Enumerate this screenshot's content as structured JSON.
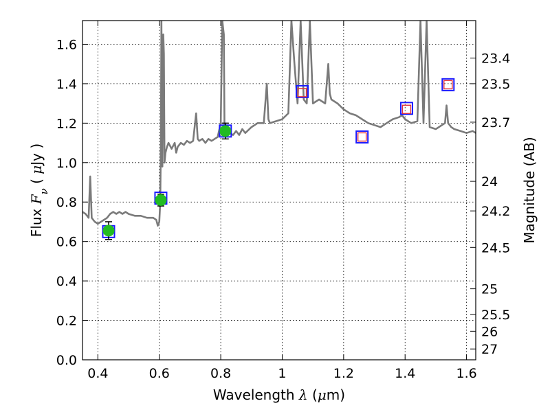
{
  "chart_data": {
    "type": "line",
    "xlabel": {
      "prefix": "Wavelength  ",
      "symbol": "λ",
      "suffix": " (",
      "unit": "μ",
      "tail": "m)"
    },
    "ylabel": {
      "prefix": "Flux  ",
      "symbol": "F",
      "subscript": "ν",
      "middle": "  ( ",
      "unit": "μ",
      "tail": "Jy )"
    },
    "y2label": "Magnitude (AB)",
    "xlim": [
      0.35,
      1.63
    ],
    "ylim": [
      0.0,
      1.72
    ],
    "xticks": [
      0.4,
      0.6,
      0.8,
      1.0,
      1.2,
      1.4,
      1.6
    ],
    "xtick_labels": [
      "0.4",
      "0.6",
      "0.8",
      "1",
      "1.2",
      "1.4",
      "1.6"
    ],
    "yticks": [
      0.0,
      0.2,
      0.4,
      0.6,
      0.8,
      1.0,
      1.2,
      1.4,
      1.6
    ],
    "ytick_labels": [
      "0.0",
      "0.2",
      "0.4",
      "0.6",
      "0.8",
      "1.0",
      "1.2",
      "1.4",
      "1.6"
    ],
    "magnitude_ticks": [
      {
        "flux": 1.4,
        "label": "23.5"
      },
      {
        "flux": 1.53,
        "label": "23.4"
      },
      {
        "flux": 1.205,
        "label": "23.7"
      },
      {
        "flux": 0.905,
        "label": "24"
      },
      {
        "flux": 0.755,
        "label": "24.2"
      },
      {
        "flux": 0.57,
        "label": "24.5"
      },
      {
        "flux": 0.36,
        "label": "25"
      },
      {
        "flux": 0.23,
        "label": "25.5"
      },
      {
        "flux": 0.145,
        "label": "26"
      },
      {
        "flux": 0.055,
        "label": "27"
      }
    ],
    "grid": true,
    "colors": {
      "spectrum": "#7a7a7a",
      "model_marker": "#1a1aff",
      "filled_marker": "#22bb22",
      "open_marker": "#e0303a",
      "error_bar": "#000000"
    },
    "series": [
      {
        "kind": "model-spectrum",
        "x": [
          0.35,
          0.36,
          0.37,
          0.375,
          0.38,
          0.385,
          0.39,
          0.4,
          0.41,
          0.42,
          0.43,
          0.44,
          0.45,
          0.46,
          0.47,
          0.48,
          0.49,
          0.5,
          0.52,
          0.54,
          0.56,
          0.58,
          0.59,
          0.595,
          0.6,
          0.603,
          0.605,
          0.607,
          0.61,
          0.613,
          0.615,
          0.617,
          0.62,
          0.625,
          0.63,
          0.64,
          0.65,
          0.655,
          0.66,
          0.67,
          0.68,
          0.69,
          0.7,
          0.71,
          0.72,
          0.725,
          0.73,
          0.74,
          0.75,
          0.76,
          0.77,
          0.78,
          0.79,
          0.8,
          0.805,
          0.81,
          0.812,
          0.815,
          0.82,
          0.83,
          0.84,
          0.85,
          0.86,
          0.87,
          0.88,
          0.9,
          0.92,
          0.94,
          0.95,
          0.955,
          0.96,
          0.98,
          1.0,
          1.02,
          1.03,
          1.04,
          1.05,
          1.06,
          1.07,
          1.08,
          1.09,
          1.1,
          1.12,
          1.14,
          1.15,
          1.155,
          1.16,
          1.18,
          1.2,
          1.22,
          1.24,
          1.26,
          1.28,
          1.3,
          1.32,
          1.34,
          1.36,
          1.38,
          1.39,
          1.4,
          1.42,
          1.44,
          1.45,
          1.46,
          1.47,
          1.48,
          1.5,
          1.52,
          1.53,
          1.535,
          1.54,
          1.55,
          1.56,
          1.58,
          1.6,
          1.62,
          1.63
        ],
        "y": [
          0.75,
          0.74,
          0.72,
          0.93,
          0.72,
          0.71,
          0.7,
          0.69,
          0.7,
          0.71,
          0.72,
          0.74,
          0.75,
          0.74,
          0.75,
          0.74,
          0.75,
          0.74,
          0.73,
          0.73,
          0.72,
          0.72,
          0.71,
          0.68,
          0.7,
          0.8,
          1.1,
          1.72,
          0.98,
          1.65,
          1.55,
          1.0,
          1.05,
          1.08,
          1.1,
          1.07,
          1.1,
          1.05,
          1.08,
          1.1,
          1.09,
          1.11,
          1.1,
          1.11,
          1.25,
          1.12,
          1.11,
          1.12,
          1.1,
          1.12,
          1.11,
          1.12,
          1.13,
          1.2,
          1.72,
          1.65,
          1.2,
          1.15,
          1.14,
          1.15,
          1.14,
          1.16,
          1.14,
          1.17,
          1.15,
          1.18,
          1.2,
          1.2,
          1.4,
          1.22,
          1.2,
          1.21,
          1.22,
          1.25,
          1.72,
          1.5,
          1.3,
          1.72,
          1.32,
          1.3,
          1.72,
          1.3,
          1.32,
          1.3,
          1.5,
          1.35,
          1.32,
          1.3,
          1.27,
          1.25,
          1.24,
          1.22,
          1.2,
          1.19,
          1.18,
          1.2,
          1.22,
          1.23,
          1.24,
          1.22,
          1.2,
          1.21,
          1.72,
          1.2,
          1.72,
          1.18,
          1.17,
          1.19,
          1.2,
          1.29,
          1.2,
          1.18,
          1.17,
          1.16,
          1.15,
          1.16,
          1.15
        ]
      },
      {
        "kind": "model-photometry",
        "x": [
          0.435,
          0.605,
          0.815,
          1.065,
          1.26,
          1.405,
          1.54
        ],
        "y": [
          0.65,
          0.82,
          1.16,
          1.36,
          1.13,
          1.275,
          1.395
        ]
      },
      {
        "kind": "observed-detections",
        "x": [
          0.435,
          0.605,
          0.815
        ],
        "y": [
          0.655,
          0.81,
          1.16
        ],
        "yerr": [
          0.045,
          0.03,
          0.04
        ]
      },
      {
        "kind": "observed-upper",
        "x": [
          1.065,
          1.26,
          1.405,
          1.54
        ],
        "y": [
          1.355,
          1.13,
          1.27,
          1.395
        ]
      }
    ]
  }
}
